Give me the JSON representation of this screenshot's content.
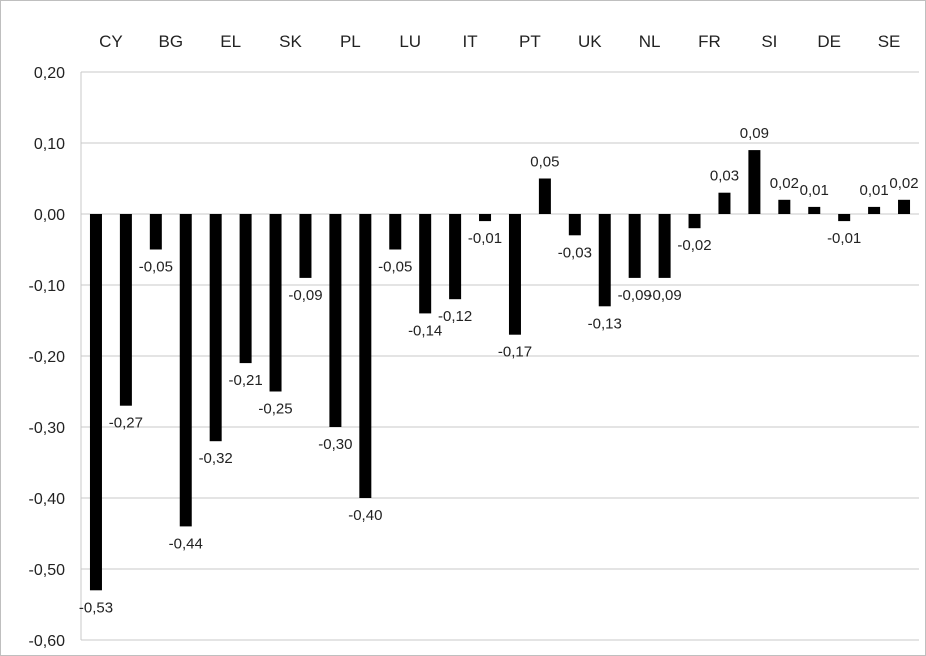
{
  "chart_data": {
    "type": "bar",
    "top_labels": [
      "CY",
      "BG",
      "EL",
      "SK",
      "PL",
      "LU",
      "IT",
      "PT",
      "UK",
      "NL",
      "FR",
      "SI",
      "DE",
      "SE"
    ],
    "values": [
      -0.53,
      -0.27,
      -0.05,
      -0.44,
      -0.32,
      -0.21,
      -0.25,
      -0.09,
      -0.3,
      -0.4,
      -0.05,
      -0.14,
      -0.12,
      -0.01,
      -0.17,
      0.05,
      -0.03,
      -0.13,
      -0.09,
      -0.09,
      -0.02,
      0.03,
      0.09,
      0.02,
      0.01,
      -0.01,
      0.01,
      0.02
    ],
    "value_labels": [
      "-0,53",
      "-0,27",
      "-0,05",
      "-0,44",
      "-0,32",
      "-0,21",
      "-0,25",
      "-0,09",
      "-0,30",
      "-0,40",
      "-0,05",
      "-0,14",
      "-0,12",
      "-0,01",
      "-0,17",
      "0,05",
      "-0,03",
      "-0,13",
      "-0,09",
      "-0,09",
      "-0,02",
      "0,03",
      "0,09",
      "0,02",
      "0,01",
      "-0,01",
      "0,01",
      "0,02"
    ],
    "y_ticks": [
      0.2,
      0.1,
      0.0,
      -0.1,
      -0.2,
      -0.3,
      -0.4,
      -0.5,
      -0.6
    ],
    "y_tick_labels": [
      "0,20",
      "0,10",
      "0,00",
      "-0,10",
      "-0,20",
      "-0,30",
      "-0,40",
      "-0,50",
      "-0,60"
    ],
    "ylim": [
      -0.6,
      0.2
    ],
    "grid": true,
    "bar_color": "#000000",
    "grid_color": "#c8c8c8"
  }
}
